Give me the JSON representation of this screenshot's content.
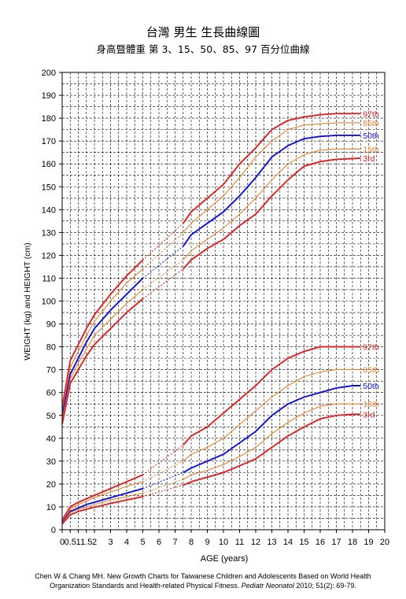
{
  "titles": {
    "line1": "台灣  男生  生長曲線圖",
    "line2": "身高暨體重  第 3、15、50、85、97 百分位曲線"
  },
  "citation": {
    "line1": "Chen W & Chang MH. New Growth Charts for Taiwanese Children and Adolescents Based on World Health",
    "line2_pre": "Organization Standards and Health-related Physical Fitness. ",
    "line2_journal": "Pediatr Neonatol",
    "line2_post": " 2010; 51(2): 69-79."
  },
  "colors": {
    "p3": "#e02020",
    "p15": "#e8822a",
    "p50": "#1010e0",
    "p85": "#e8822a",
    "p97": "#e02020",
    "grid": "#000000"
  },
  "chart_data": {
    "type": "line",
    "xlabel": "AGE (years)",
    "ylabel": "WEIGHT (kg) and HEIGHT (cm)",
    "xlim": [
      0,
      20
    ],
    "ylim": [
      0,
      200
    ],
    "x_ticks": [
      "0",
      "0.5",
      "1",
      "1.5",
      "2",
      "3",
      "4",
      "5",
      "6",
      "7",
      "8",
      "9",
      "10",
      "11",
      "12",
      "13",
      "14",
      "15",
      "16",
      "17",
      "18",
      "19",
      "20"
    ],
    "y_ticks": [
      "0",
      "10",
      "20",
      "30",
      "40",
      "50",
      "60",
      "70",
      "80",
      "90",
      "100",
      "110",
      "120",
      "130",
      "140",
      "150",
      "160",
      "170",
      "180",
      "190",
      "200"
    ],
    "grid": true,
    "dashed_segment_x": [
      5,
      7.5
    ],
    "height_series": [
      {
        "name": "97th",
        "label": "97th",
        "color": "#e02020",
        "x": [
          0,
          0.5,
          1,
          1.5,
          2,
          3,
          4,
          5,
          7.5,
          8,
          9,
          10,
          11,
          12,
          13,
          14,
          15,
          16,
          17,
          18,
          18.5
        ],
        "y": [
          53.4,
          74,
          81,
          88,
          94,
          103,
          111,
          118,
          134,
          139,
          145,
          151,
          160,
          167,
          175,
          179,
          180.5,
          181.5,
          182,
          182,
          182
        ]
      },
      {
        "name": "85th",
        "label": "85th",
        "color": "#e8822a",
        "x": [
          0,
          0.5,
          1,
          1.5,
          2,
          3,
          4,
          5,
          7.5,
          8,
          9,
          10,
          11,
          12,
          13,
          14,
          15,
          16,
          17,
          18,
          18.5
        ],
        "y": [
          51.8,
          71,
          78,
          85,
          91,
          100,
          108,
          114,
          130,
          134,
          140,
          146,
          154,
          163,
          170,
          175,
          177,
          177.5,
          178,
          178,
          178
        ]
      },
      {
        "name": "50th",
        "label": "50th",
        "color": "#1010e0",
        "x": [
          0,
          0.5,
          1,
          1.5,
          2,
          3,
          4,
          5,
          7.5,
          8,
          9,
          10,
          11,
          12,
          13,
          14,
          15,
          16,
          17,
          18,
          18.5
        ],
        "y": [
          49.9,
          68,
          75,
          82,
          88,
          96,
          103,
          110,
          124,
          129,
          134,
          139,
          146,
          154,
          163,
          168,
          171,
          172,
          172.5,
          172.5,
          172.5
        ]
      },
      {
        "name": "15th",
        "label": "15th",
        "color": "#e8822a",
        "x": [
          0,
          0.5,
          1,
          1.5,
          2,
          3,
          4,
          5,
          7.5,
          8,
          9,
          10,
          11,
          12,
          13,
          14,
          15,
          16,
          17,
          18,
          18.5
        ],
        "y": [
          48,
          66,
          73,
          79,
          85,
          92,
          99,
          105,
          118,
          122,
          127,
          132,
          138,
          145,
          153,
          160,
          164,
          166,
          166.5,
          166.5,
          166.5
        ]
      },
      {
        "name": "3rd",
        "label": "3rd",
        "color": "#e02020",
        "x": [
          0,
          0.5,
          1,
          1.5,
          2,
          3,
          4,
          5,
          7.5,
          8,
          9,
          10,
          11,
          12,
          13,
          14,
          15,
          16,
          17,
          18,
          18.5
        ],
        "y": [
          46.1,
          64,
          70,
          76,
          81,
          88,
          95,
          101,
          114,
          118,
          123,
          127,
          133,
          138,
          146,
          153,
          159,
          161,
          162,
          162.3,
          162.5
        ]
      }
    ],
    "weight_series": [
      {
        "name": "97th",
        "label": "97th",
        "color": "#e02020",
        "x": [
          0,
          0.5,
          1,
          1.5,
          2,
          3,
          4,
          5,
          7.5,
          8,
          9,
          10,
          11,
          12,
          13,
          14,
          15,
          16,
          17,
          18,
          18.5
        ],
        "y": [
          4.3,
          10,
          12,
          13.5,
          15,
          18,
          21,
          24,
          37,
          41,
          45,
          51,
          57,
          63,
          70,
          75,
          78,
          80,
          80,
          80,
          80
        ]
      },
      {
        "name": "85th",
        "label": "85th",
        "color": "#e8822a",
        "x": [
          0,
          0.5,
          1,
          1.5,
          2,
          3,
          4,
          5,
          7.5,
          8,
          9,
          10,
          11,
          12,
          13,
          14,
          15,
          16,
          17,
          18,
          18.5
        ],
        "y": [
          3.9,
          9,
          11,
          12.5,
          14,
          16.5,
          19,
          21,
          30,
          33,
          36,
          40,
          46,
          52,
          58,
          63,
          67,
          69,
          70,
          70,
          70
        ]
      },
      {
        "name": "50th",
        "label": "50th",
        "color": "#1010e0",
        "x": [
          0,
          0.5,
          1,
          1.5,
          2,
          3,
          4,
          5,
          7.5,
          8,
          9,
          10,
          11,
          12,
          13,
          14,
          15,
          16,
          17,
          18,
          18.5
        ],
        "y": [
          3.3,
          8,
          9.5,
          11,
          12,
          14,
          16,
          18,
          25,
          27,
          30,
          33,
          38,
          43,
          50,
          55,
          58,
          60,
          62,
          63,
          63
        ]
      },
      {
        "name": "15th",
        "label": "15th",
        "color": "#e8822a",
        "x": [
          0,
          0.5,
          1,
          1.5,
          2,
          3,
          4,
          5,
          7.5,
          8,
          9,
          10,
          11,
          12,
          13,
          14,
          15,
          16,
          17,
          18,
          18.5
        ],
        "y": [
          2.9,
          7.5,
          9,
          10,
          11,
          13,
          14.5,
          16,
          22,
          24,
          26,
          28.5,
          32,
          36,
          42,
          47,
          51,
          54,
          55,
          55,
          55
        ]
      },
      {
        "name": "3rd",
        "label": "3rd",
        "color": "#e02020",
        "x": [
          0,
          0.5,
          1,
          1.5,
          2,
          3,
          4,
          5,
          7.5,
          8,
          9,
          10,
          11,
          12,
          13,
          14,
          15,
          16,
          17,
          18,
          18.5
        ],
        "y": [
          2.5,
          6.5,
          8,
          9,
          9.8,
          11.5,
          13,
          14.5,
          19.5,
          21,
          23,
          25,
          28,
          31,
          36,
          41,
          45,
          48.5,
          50,
          50.5,
          50.5
        ]
      }
    ]
  }
}
